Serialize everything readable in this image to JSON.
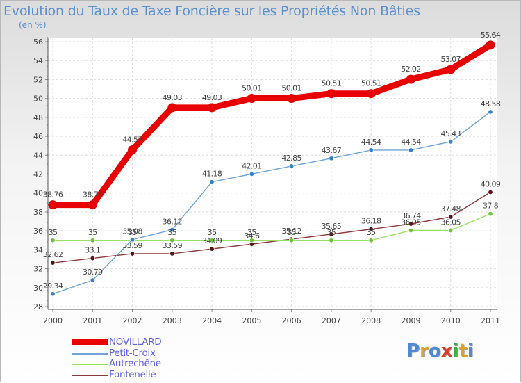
{
  "header": {
    "title": "Evolution du Taux de Taxe Foncière sur les Propriétés Non Bâties",
    "unit": "(en %)"
  },
  "logo": {
    "letters": [
      "P",
      "r",
      "o",
      "x",
      "i",
      "t",
      "i"
    ],
    "colors": [
      "#4e88d6",
      "#e0a020",
      "#4e88d6",
      "#d8402c",
      "#3fae4a",
      "#e0a020",
      "#4e88d6"
    ]
  },
  "chart_data": {
    "type": "line",
    "title": "Evolution du Taux de Taxe Foncière sur les Propriétés Non Bâties",
    "ylabel": "(en %)",
    "xlabel": "",
    "x": [
      "2000",
      "2001",
      "2002",
      "2003",
      "2004",
      "2005",
      "2006",
      "2007",
      "2008",
      "2009",
      "2010",
      "2011"
    ],
    "ylim": [
      28,
      56
    ],
    "yticks": [
      "28",
      "30",
      "32",
      "34",
      "36",
      "38",
      "40",
      "42",
      "44",
      "46",
      "48",
      "50",
      "52",
      "54",
      "56"
    ],
    "grid": true,
    "legend_position": "bottom-left",
    "series": [
      {
        "name": "NOVILLARD",
        "color": "#e80000",
        "point_color": "#e80000",
        "values": [
          38.76,
          38.76,
          44.57,
          49.03,
          49.03,
          50.01,
          50.01,
          50.51,
          50.51,
          52.02,
          53.07,
          55.64
        ],
        "labels": [
          "38.76",
          "38.76",
          "44.57",
          "49.03",
          "49.03",
          "50.01",
          "50.01",
          "50.51",
          "50.51",
          "52.02",
          "53.07",
          "55.64"
        ]
      },
      {
        "name": "Petit-Croix",
        "color": "#6ea4d8",
        "point_color": "#3a80c8",
        "values": [
          29.34,
          30.79,
          35.08,
          36.12,
          41.18,
          42.01,
          42.85,
          43.67,
          44.54,
          44.54,
          45.43,
          48.58
        ],
        "labels": [
          "29.34",
          "30.79",
          "35.08",
          "36.12",
          "41.18",
          "42.01",
          "42.85",
          "43.67",
          "44.54",
          "44.54",
          "45.43",
          "48.58"
        ]
      },
      {
        "name": "Autrechêne",
        "color": "#9ae060",
        "point_color": "#6cc23a",
        "values": [
          35,
          35,
          35,
          35,
          35,
          35,
          35,
          35,
          35,
          36.05,
          36.05,
          37.8
        ],
        "labels": [
          "35",
          "35",
          "35",
          "35",
          "35",
          "35",
          "35",
          "35",
          "35",
          "36.05",
          "36.05",
          "37.8"
        ]
      },
      {
        "name": "Fontenelle",
        "color": "#8a3a3a",
        "point_color": "#5a1414",
        "values": [
          32.62,
          33.1,
          33.59,
          33.59,
          34.09,
          34.6,
          35.12,
          35.65,
          36.18,
          36.74,
          37.48,
          40.09
        ],
        "labels": [
          "32.62",
          "33.1",
          "33.59",
          "33.59",
          "34.09",
          "34.6",
          "35.12",
          "35.65",
          "36.18",
          "36.74",
          "37.48",
          "40.09"
        ]
      }
    ]
  }
}
